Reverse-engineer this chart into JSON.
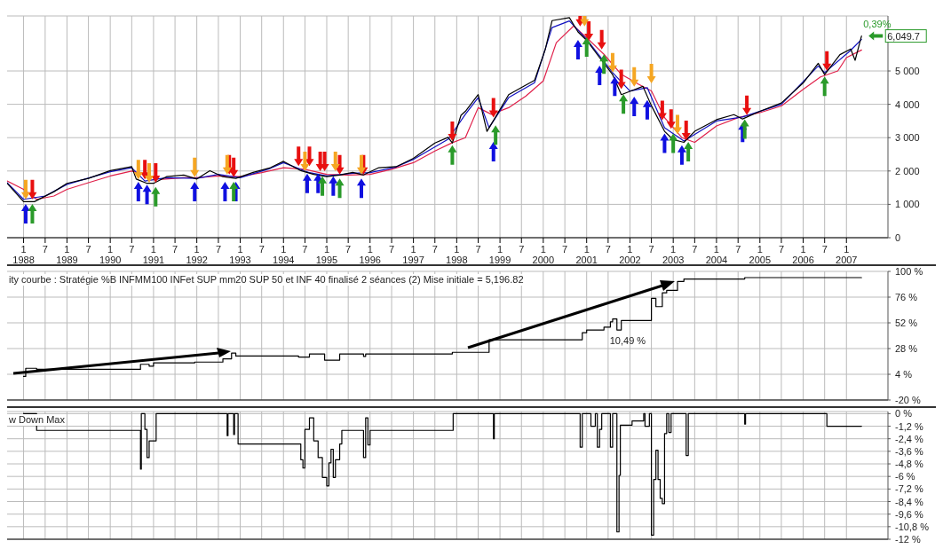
{
  "chart_data": [
    {
      "type": "line",
      "xlim": [
        "1987-08-15",
        "2007-12-17"
      ],
      "ylim": [
        0,
        6650
      ],
      "xticks": [
        {
          "value": "1988-01",
          "label": "1\n1988"
        },
        {
          "value": "1988-07",
          "label": "7"
        },
        {
          "value": "1989-01",
          "label": "1\n1989"
        },
        {
          "value": "1989-07",
          "label": "7"
        },
        {
          "value": "1990-01",
          "label": "1\n1990"
        },
        {
          "value": "1990-07",
          "label": "7"
        },
        {
          "value": "1991-01",
          "label": "1\n1991"
        },
        {
          "value": "1991-07",
          "label": "7"
        },
        {
          "value": "1992-01",
          "label": "1\n1992"
        },
        {
          "value": "1992-07",
          "label": "7"
        },
        {
          "value": "1993-01",
          "label": "1\n1993"
        },
        {
          "value": "1993-07",
          "label": "7"
        },
        {
          "value": "1994-01",
          "label": "1\n1994"
        },
        {
          "value": "1994-07",
          "label": "7"
        },
        {
          "value": "1995-01",
          "label": "1\n1995"
        },
        {
          "value": "1995-07",
          "label": "7"
        },
        {
          "value": "1996-01",
          "label": "1\n1996"
        },
        {
          "value": "1996-07",
          "label": "7"
        },
        {
          "value": "1997-01",
          "label": "1\n1997"
        },
        {
          "value": "1997-07",
          "label": "7"
        },
        {
          "value": "1998-01",
          "label": "1\n1998"
        },
        {
          "value": "1998-07",
          "label": "7"
        },
        {
          "value": "1999-01",
          "label": "1\n1999"
        },
        {
          "value": "1999-07",
          "label": "7"
        },
        {
          "value": "2000-01",
          "label": "1\n2000"
        },
        {
          "value": "2000-07",
          "label": "7"
        },
        {
          "value": "2001-01",
          "label": "1\n2001"
        },
        {
          "value": "2001-07",
          "label": "7"
        },
        {
          "value": "2002-01",
          "label": "1\n2002"
        },
        {
          "value": "2002-07",
          "label": "7"
        },
        {
          "value": "2003-01",
          "label": "1\n2003"
        },
        {
          "value": "2003-07",
          "label": "7"
        },
        {
          "value": "2004-01",
          "label": "1\n2004"
        },
        {
          "value": "2004-07",
          "label": "7"
        },
        {
          "value": "2005-01",
          "label": "1\n2005"
        },
        {
          "value": "2005-07",
          "label": "7"
        },
        {
          "value": "2006-01",
          "label": "1\n2006"
        },
        {
          "value": "2006-07",
          "label": "7"
        },
        {
          "value": "2007-01",
          "label": "1\n2007"
        }
      ],
      "yticks": [
        0,
        {
          "value": 1000,
          "label": "1 000"
        },
        {
          "value": 2000,
          "label": "2 000"
        },
        {
          "value": 3000,
          "label": "3 000"
        },
        {
          "value": 4000,
          "label": "4 000"
        },
        {
          "value": 5000,
          "label": "5 000"
        }
      ],
      "grid": true,
      "annotations": [
        {
          "text": "0,39%",
          "x": "2007-05-08",
          "y": 6049.7
        },
        {
          "text": "6,049.7",
          "x": "2007-05-08",
          "y": 6049.7
        }
      ],
      "series": [
        {
          "color": "#e0204a",
          "x": [
            "1987-08-15",
            "1988-01-01",
            "1988-04-20",
            "1988-09-13",
            "1989-01-01",
            "1989-07-01",
            "1990-01-01",
            "1990-07-01",
            "1990-10-20",
            "1991-03-15",
            "1991-09-13",
            "1992-01-01",
            "1992-07-01",
            "1993-01-01",
            "1993-07-01",
            "1994-01-01",
            "1994-07-01",
            "1995-01-01",
            "1995-07-01",
            "1996-01-01",
            "1996-07-01",
            "1997-01-01",
            "1997-07-01",
            "1997-11-25",
            "1998-03-15",
            "1998-07-01",
            "1998-10-20",
            "1999-03-15",
            "1999-08-08",
            "2000-01-01",
            "2000-04-20",
            "2000-09-13",
            "2001-01-01",
            "2001-05-27",
            "2001-10-20",
            "2002-03-15",
            "2002-07-01",
            "2002-10-20",
            "2003-03-15",
            "2003-07-01",
            "2004-01-01",
            "2004-07-01",
            "2005-01-01",
            "2005-07-01",
            "2006-01-01",
            "2006-05-27",
            "2006-10-20",
            "2007-01-01",
            "2007-05-08"
          ],
          "values": [
            1700,
            1450,
            1150,
            1250,
            1450,
            1650,
            1850,
            2000,
            1900,
            1750,
            1800,
            1800,
            1850,
            1830,
            1950,
            2100,
            2050,
            1900,
            1880,
            1900,
            2050,
            2250,
            2600,
            2850,
            3000,
            3900,
            3700,
            3900,
            4250,
            4700,
            5850,
            6350,
            6000,
            5500,
            4900,
            4600,
            4400,
            3600,
            3000,
            2860,
            3350,
            3600,
            3750,
            3950,
            4450,
            4820,
            5000,
            5400,
            5630
          ]
        },
        {
          "color": "#1010c0",
          "x": [
            "1987-08-15",
            "1988-01-01",
            "1988-07-01",
            "1989-01-01",
            "1990-01-01",
            "1990-07-01",
            "1990-10-20",
            "1991-04-20",
            "1992-01-01",
            "1992-07-01",
            "1993-01-01",
            "1993-09-13",
            "1994-01-01",
            "1994-08-08",
            "1995-01-01",
            "1995-08-08",
            "1996-01-01",
            "1996-08-08",
            "1997-01-01",
            "1997-10-20",
            "1998-03-15",
            "1998-07-01",
            "1998-10-01",
            "1999-03-15",
            "1999-10-20",
            "2000-03-15",
            "2000-08-08",
            "2001-01-01",
            "2001-08-08",
            "2002-01-01",
            "2002-05-27",
            "2002-10-20",
            "2003-04-01",
            "2004-01-01",
            "2004-08-08",
            "2005-07-01",
            "2006-05-08",
            "2006-07-01",
            "2007-02-06",
            "2007-05-08"
          ],
          "values": [
            1650,
            1150,
            1250,
            1600,
            1980,
            2100,
            1700,
            1800,
            1780,
            1900,
            1800,
            2080,
            2250,
            1950,
            1850,
            1930,
            1950,
            2120,
            2350,
            2950,
            3700,
            4200,
            3300,
            4200,
            4650,
            6300,
            6500,
            5950,
            4950,
            4400,
            4500,
            3300,
            2900,
            3500,
            3620,
            4000,
            5150,
            4950,
            5620,
            5950
          ]
        },
        {
          "color": "#000000",
          "x": [
            "1987-08-15",
            "1988-01-01",
            "1988-04-01",
            "1988-09-13",
            "1989-01-01",
            "1989-07-01",
            "1990-01-01",
            "1990-07-01",
            "1990-08-08",
            "1990-11-07",
            "1991-01-01",
            "1991-04-20",
            "1991-09-13",
            "1992-01-01",
            "1992-04-20",
            "1992-08-08",
            "1992-11-25",
            "1993-04-20",
            "1993-09-13",
            "1994-01-01",
            "1994-05-27",
            "1994-09-13",
            "1995-01-01",
            "1995-04-20",
            "1995-08-08",
            "1995-11-07",
            "1996-03-15",
            "1996-08-08",
            "1997-01-01",
            "1997-07-01",
            "1997-10-20",
            "1997-11-25",
            "1998-02-06",
            "1998-03-15",
            "1998-07-01",
            "1998-09-13",
            "1998-11-25",
            "1999-03-15",
            "1999-07-20",
            "1999-10-20",
            "2000-01-19",
            "2000-03-15",
            "2000-08-08",
            "2000-10-20",
            "2001-01-01",
            "2001-04-20",
            "2001-08-08",
            "2001-10-20",
            "2002-01-01",
            "2002-04-20",
            "2002-07-01",
            "2002-10-20",
            "2003-01-01",
            "2003-04-01",
            "2003-07-01",
            "2004-01-01",
            "2004-05-27",
            "2004-08-08",
            "2005-01-01",
            "2005-07-01",
            "2006-01-01",
            "2006-05-08",
            "2006-07-01",
            "2006-11-07",
            "2007-02-06",
            "2007-03-15",
            "2007-05-08"
          ],
          "values": [
            1630,
            1080,
            1080,
            1380,
            1630,
            1780,
            2010,
            2130,
            1760,
            1630,
            1630,
            1830,
            1880,
            1760,
            2010,
            1830,
            1780,
            1960,
            2100,
            2290,
            2010,
            1900,
            1830,
            1880,
            1960,
            1880,
            2100,
            2130,
            2380,
            2840,
            3010,
            2840,
            3670,
            3790,
            4290,
            3190,
            3620,
            4290,
            4540,
            4720,
            5660,
            6510,
            6600,
            6170,
            5920,
            5400,
            4890,
            4290,
            4390,
            4540,
            3960,
            3190,
            2940,
            2860,
            3190,
            3540,
            3690,
            3560,
            3790,
            4040,
            4640,
            5230,
            4890,
            5490,
            5660,
            5320,
            6049.7
          ]
        },
        {
          "type": "scatter",
          "color": "#e81010",
          "x": [
            "1988-03-15",
            "1990-10-20",
            "1991-01-19",
            "1992-10-01",
            "1992-11-07",
            "1994-05-08",
            "1994-08-08",
            "1994-11-07",
            "1994-12-14",
            "1995-04-20",
            "1995-11-07",
            "1997-11-25",
            "1998-11-07",
            "2000-11-07",
            "2001-01-19",
            "2001-05-08",
            "2001-10-20",
            "2002-10-01",
            "2002-12-14",
            "2003-04-20",
            "2004-09-13",
            "2006-07-20"
          ],
          "values": [
            1440,
            2040,
            1940,
            2190,
            2110,
            2440,
            2440,
            2290,
            2290,
            2190,
            2190,
            3190,
            3900,
            6630,
            6200,
            5940,
            4750,
            3820,
            3560,
            3220,
            3970,
            5300
          ]
        },
        {
          "type": "scatter",
          "color": "#f5a623",
          "x": [
            "1988-01-19",
            "1990-08-26",
            "1990-11-25",
            "1991-12-14",
            "1992-09-13",
            "1994-07-01",
            "1995-03-15",
            "1995-10-20",
            "2000-12-14",
            "2001-08-08",
            "2002-02-06",
            "2002-07-01",
            "2003-02-06"
          ],
          "values": [
            1440,
            2040,
            1940,
            2110,
            2190,
            2290,
            2290,
            2190,
            6630,
            5250,
            4820,
            4920,
            3390
          ]
        },
        {
          "type": "scatter",
          "color": "#1010e0",
          "x": [
            "1988-01-19",
            "1990-08-26",
            "1990-11-07",
            "1991-12-14",
            "1992-08-26",
            "1992-11-25",
            "1994-07-20",
            "1994-10-20",
            "1995-02-25",
            "1995-10-20",
            "1998-11-07",
            "2000-10-20",
            "2001-04-20",
            "2001-08-26",
            "2002-02-06",
            "2002-05-27",
            "2002-10-20",
            "2003-03-15",
            "2004-08-08"
          ],
          "values": [
            720,
            1380,
            1300,
            1380,
            1380,
            1380,
            1630,
            1630,
            1550,
            1480,
            2580,
            5640,
            4870,
            4540,
            3940,
            3840,
            2830,
            2480,
            3160
          ]
        },
        {
          "type": "scatter",
          "color": "#2a9a2a",
          "x": [
            "1988-03-15",
            "1991-01-19",
            "1992-11-07",
            "1994-11-25",
            "1995-04-20",
            "1997-11-25",
            "1998-11-25",
            "2001-01-01",
            "2001-05-27",
            "2001-11-07",
            "2003-01-01",
            "2003-05-08",
            "2004-08-26",
            "2006-07-01"
          ],
          "values": [
            720,
            1230,
            1380,
            1550,
            1480,
            2480,
            3080,
            5720,
            5210,
            4010,
            2830,
            2580,
            3260,
            4540
          ]
        }
      ]
    },
    {
      "type": "step",
      "xlim": [
        "1987-08-15",
        "2007-12-17"
      ],
      "ylim": [
        -20,
        100
      ],
      "tick_labels": "y",
      "grid": true,
      "xticks": [
        "1988-01",
        "1988-07",
        "1989-01",
        "1989-07",
        "1990-01",
        "1990-07",
        "1991-01",
        "1991-07",
        "1992-01",
        "1992-07",
        "1993-01",
        "1993-07",
        "1994-01",
        "1994-07",
        "1995-01",
        "1995-07",
        "1996-01",
        "1996-07",
        "1997-01",
        "1997-07",
        "1998-01",
        "1998-07",
        "1999-01",
        "1999-07",
        "2000-01",
        "2000-07",
        "2001-01",
        "2001-07",
        "2002-01",
        "2002-07",
        "2003-01",
        "2003-07",
        "2004-01",
        "2004-07",
        "2005-01",
        "2005-07",
        "2006-01",
        "2006-07",
        "2007-01"
      ],
      "yticks": [
        {
          "value": 100,
          "label": "100 %"
        },
        {
          "value": 76,
          "label": "76 %"
        },
        {
          "value": 52,
          "label": "52 %"
        },
        {
          "value": 28,
          "label": "28 %"
        },
        {
          "value": 4,
          "label": "4 %"
        },
        {
          "value": -20,
          "label": "-20 %"
        }
      ],
      "annotations": [
        "ity courbe : Stratégie %B INFMM100 INFet SUP mm20 SUP 50 et INF 40 finalisé 2 séances (2) Mise initiale = 5,196.82",
        {
          "text": "10,49 %",
          "x": "2001-09-13",
          "y": 45.3
        }
      ],
      "series": [
        {
          "color": "#000000",
          "x": [
            "1988-01-01",
            "1988-01-19",
            "1988-04-20",
            "1990-09-13",
            "1990-11-25",
            "1991-01-01",
            "1991-12-14",
            "1992-08-08",
            "1992-10-20",
            "1992-11-25",
            "1994-05-08",
            "1994-08-08",
            "1994-12-14",
            "1995-04-20",
            "1995-11-07",
            "1995-11-25",
            "1997-11-25",
            "1998-10-01",
            "2000-11-25",
            "2001-01-01",
            "2001-05-27",
            "2001-07-20",
            "2001-08-08",
            "2001-09-13",
            "2001-10-20",
            "2002-07-01",
            "2002-08-08",
            "2002-10-01",
            "2002-11-07",
            "2003-02-06",
            "2003-04-01",
            "2004-08-26",
            "2007-05-08"
          ],
          "values": [
            2,
            9.6,
            8.6,
            13.3,
            11.6,
            14.6,
            15.4,
            18.4,
            23.8,
            21,
            20,
            23,
            17.2,
            23,
            20.7,
            23,
            24.5,
            36.2,
            42.8,
            45.3,
            48,
            53,
            55.7,
            45.3,
            54.2,
            74.9,
            67.1,
            80,
            82.3,
            90.6,
            92.9,
            94.2,
            94.2
          ]
        }
      ]
    },
    {
      "type": "step",
      "xlim": [
        "1987-08-15",
        "2007-12-17"
      ],
      "ylim": [
        -12,
        0.2
      ],
      "tick_labels": "y",
      "grid": true,
      "xticks": [
        "1988-01",
        "1988-07",
        "1989-01",
        "1989-07",
        "1990-01",
        "1990-07",
        "1991-01",
        "1991-07",
        "1992-01",
        "1992-07",
        "1993-01",
        "1993-07",
        "1994-01",
        "1994-07",
        "1995-01",
        "1995-07",
        "1996-01",
        "1996-07",
        "1997-01",
        "1997-07",
        "1998-01",
        "1998-07",
        "1999-01",
        "1999-07",
        "2000-01",
        "2000-07",
        "2001-01",
        "2001-07",
        "2002-01",
        "2002-07",
        "2003-01",
        "2003-07",
        "2004-01",
        "2004-07",
        "2005-01",
        "2005-07",
        "2006-01",
        "2006-07",
        "2007-01"
      ],
      "yticks": [
        {
          "value": 0,
          "label": "0 %"
        },
        {
          "value": -1.2,
          "label": "-1,2 %"
        },
        {
          "value": -2.4,
          "label": "-2,4 %"
        },
        {
          "value": -3.6,
          "label": "-3,6 %"
        },
        {
          "value": -4.8,
          "label": "-4,8 %"
        },
        {
          "value": -6,
          "label": "-6 %"
        },
        {
          "value": -7.2,
          "label": "-7,2 %"
        },
        {
          "value": -8.4,
          "label": "-8,4 %"
        },
        {
          "value": -9.6,
          "label": "-9,6 %"
        },
        {
          "value": -10.8,
          "label": "-10,8 %"
        },
        {
          "value": -12,
          "label": "-12 %"
        }
      ],
      "annotations": [
        "w Down Max"
      ],
      "series": [
        {
          "color": "#000000",
          "x": [
            "1988-01-01",
            "1988-04-20",
            "1990-09-13",
            "1990-09-20",
            "1990-10-20",
            "1990-11-07",
            "1990-11-25",
            "1991-01-23",
            "1992-09-13",
            "1992-09-20",
            "1992-11-07",
            "1992-11-14",
            "1992-12-14",
            "1994-05-27",
            "1994-06-14",
            "1994-07-01",
            "1994-08-08",
            "1994-09-13",
            "1994-10-20",
            "1994-11-25",
            "1995-01-01",
            "1995-01-19",
            "1995-02-06",
            "1995-02-25",
            "1995-03-15",
            "1995-04-20",
            "1995-05-08",
            "1995-11-07",
            "1995-11-25",
            "1995-12-14",
            "1996-01-01",
            "1997-12-02",
            "1998-11-07",
            "1998-11-14",
            "2000-11-07",
            "2000-11-25",
            "2001-02-06",
            "2001-03-15",
            "2001-04-01",
            "2001-04-20",
            "2001-05-08",
            "2001-07-20",
            "2001-08-08",
            "2001-09-13",
            "2001-10-01",
            "2001-10-12",
            "2002-01-19",
            "2002-04-27",
            "2002-05-08",
            "2002-06-14",
            "2002-07-01",
            "2002-07-20",
            "2002-08-08",
            "2002-08-26",
            "2002-09-13",
            "2002-10-01",
            "2002-10-20",
            "2002-11-07",
            "2002-11-25",
            "2002-12-14",
            "2003-04-20",
            "2003-05-08",
            "2004-08-26",
            "2004-09-02",
            "2006-07-20",
            "2007-05-08"
          ],
          "values": [
            0,
            -1.6,
            -5.3,
            0,
            -1.5,
            -4.2,
            -2.6,
            0,
            -2.1,
            0,
            -2.0,
            0,
            -2.9,
            -4.4,
            -5.2,
            -1.5,
            -0.4,
            -2.6,
            -4.2,
            -6.1,
            -6.9,
            -4.7,
            -3.4,
            -6.1,
            -4.4,
            -2.9,
            -1.6,
            -4.2,
            -0.4,
            -3.0,
            -1.6,
            0,
            -2.4,
            0,
            -3.2,
            0,
            -1.2,
            0,
            -3.2,
            -1.5,
            0,
            -3.2,
            0,
            -11.3,
            -5.9,
            -1.1,
            -0.7,
            0,
            -1.2,
            0,
            -11.6,
            -6.3,
            -3.5,
            -6.3,
            -8.1,
            -8.6,
            -1.9,
            0,
            -1.8,
            0,
            -4.0,
            0,
            -1.0,
            0,
            -1.2,
            -1.2
          ]
        }
      ]
    }
  ]
}
